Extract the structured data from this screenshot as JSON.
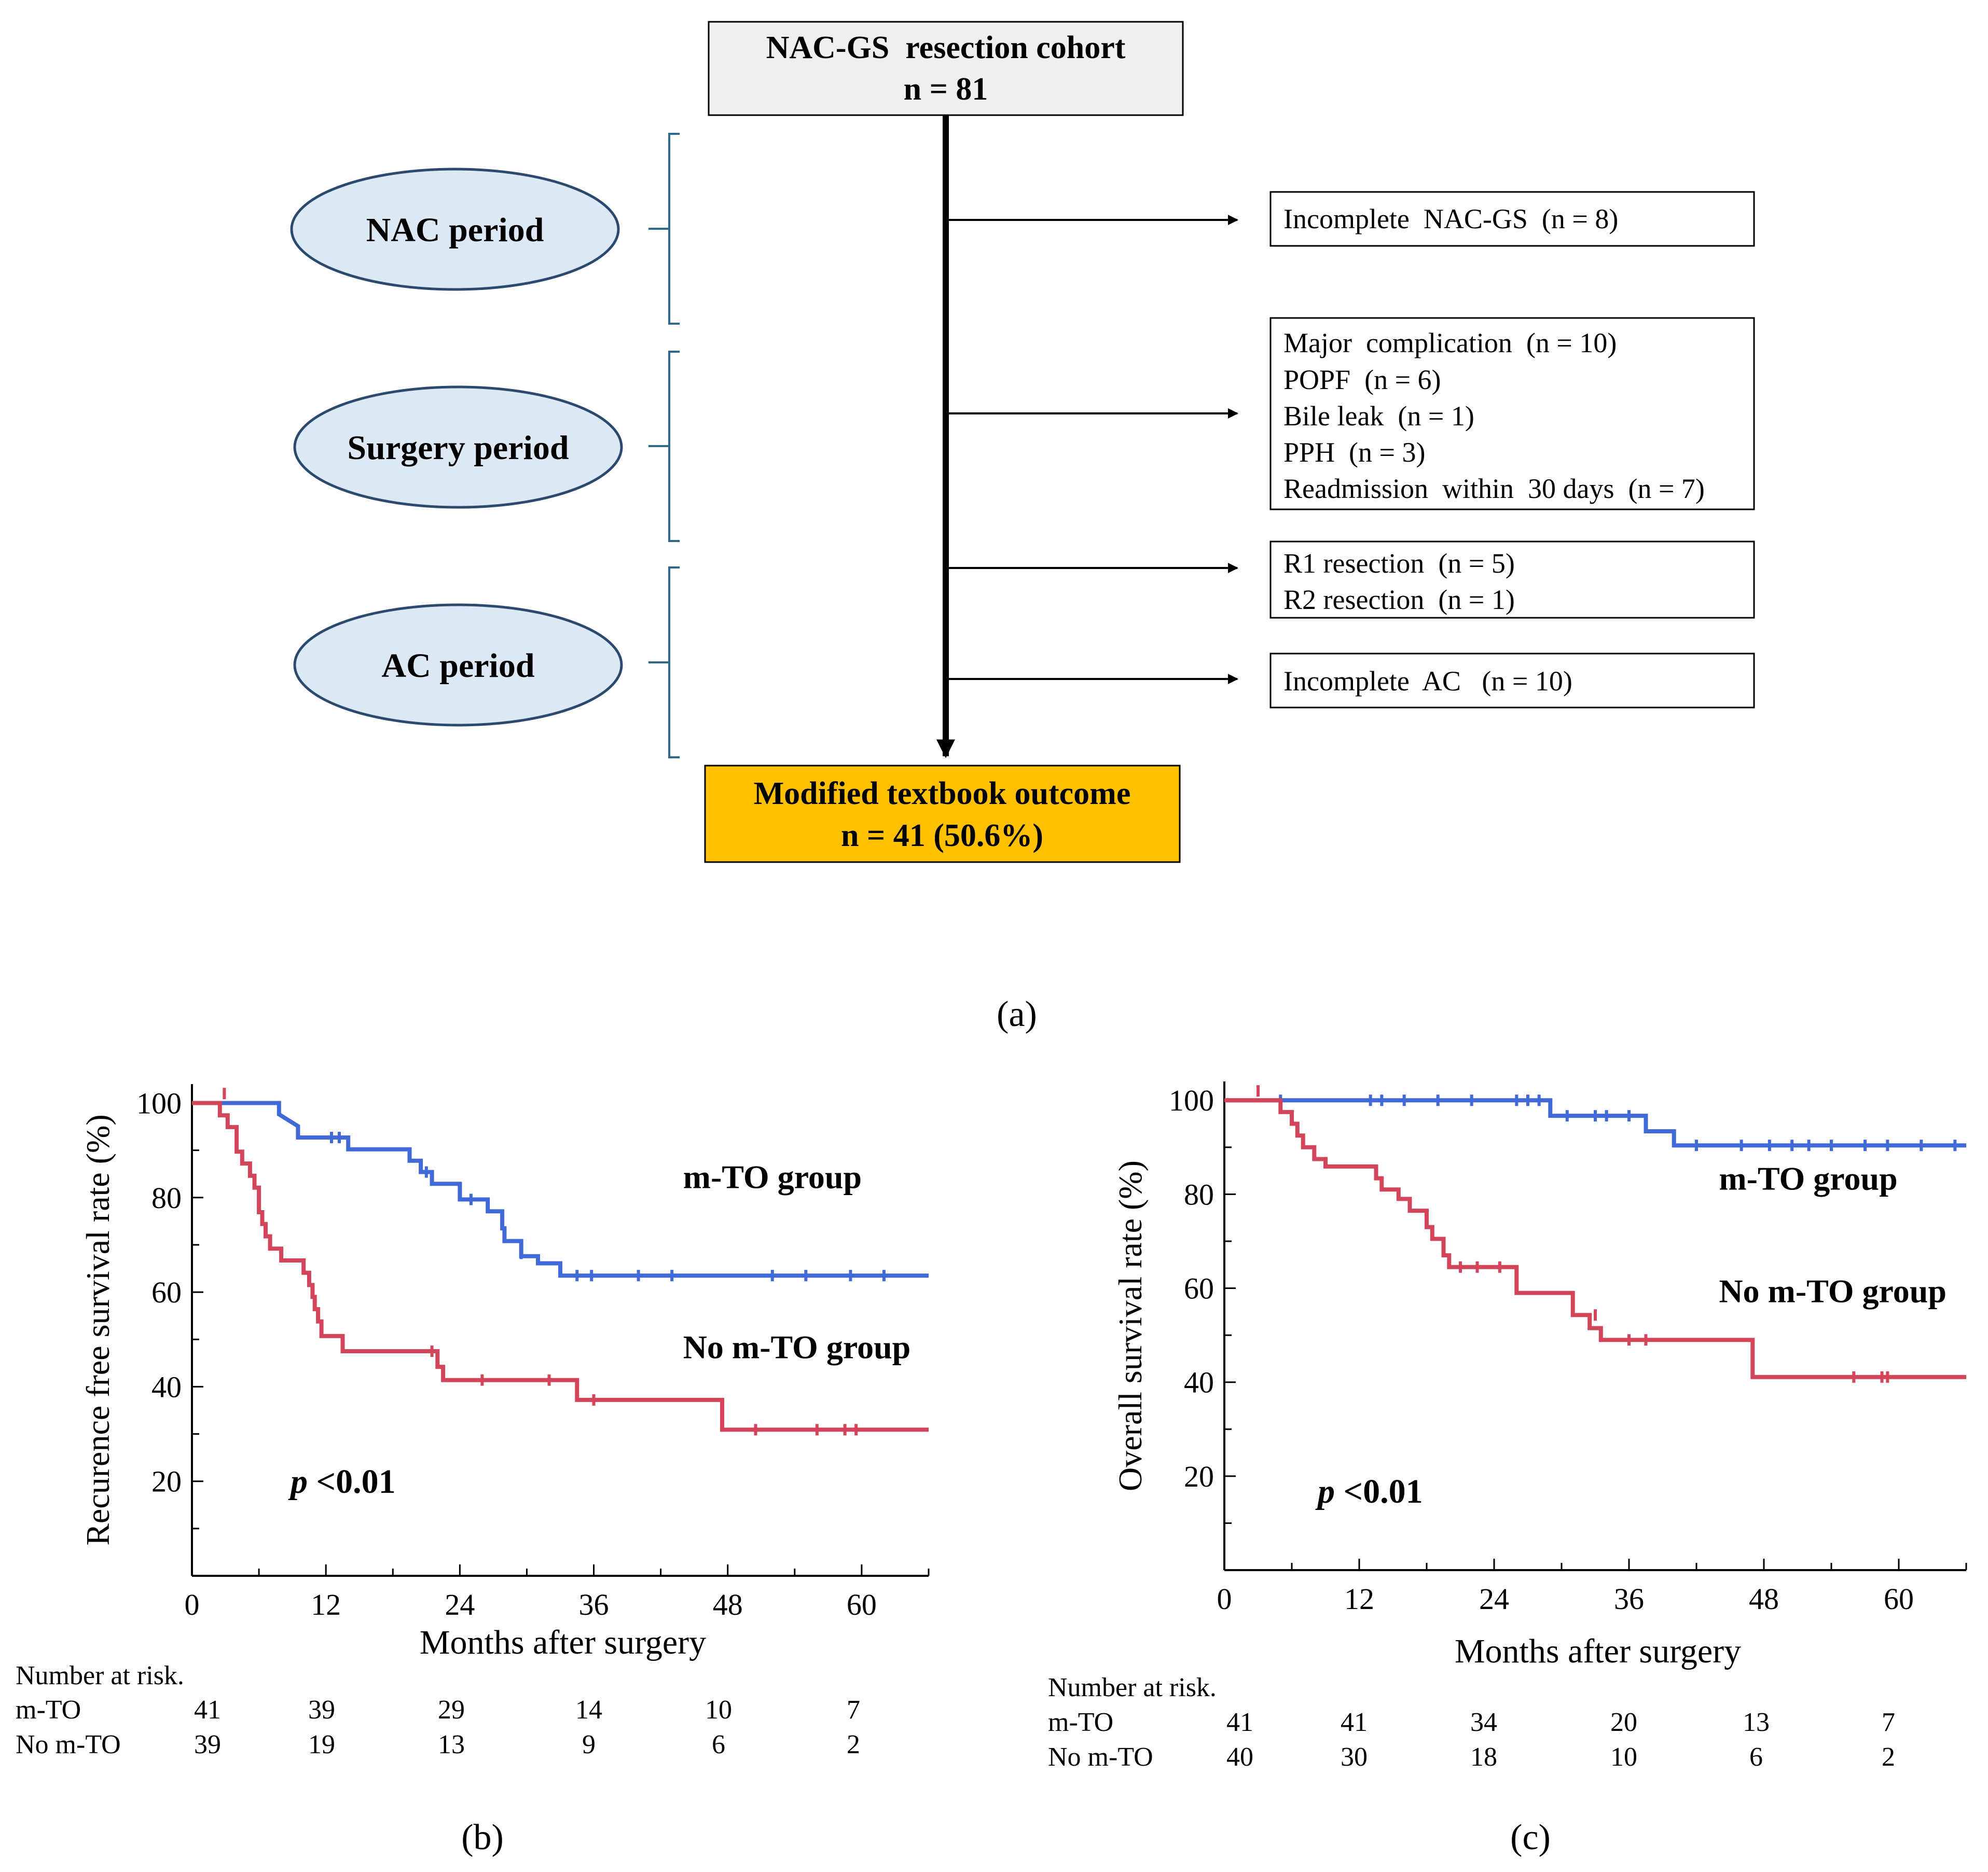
{
  "flowchart": {
    "cohort_title": "NAC-GS  resection cohort",
    "cohort_n": "n = 81",
    "periods": [
      "NAC period",
      "Surgery period",
      "AC period"
    ],
    "exclusions": [
      [
        "Incomplete  NAC-GS  (n = 8)"
      ],
      [
        "Major  complication  (n = 10)",
        "POPF  (n = 6)",
        "Bile leak  (n = 1)",
        "PPH  (n = 3)",
        "Readmission  within  30 days  (n = 7)"
      ],
      [
        "R1 resection  (n = 5)",
        "R2 resection  (n = 1)"
      ],
      [
        "Incomplete  AC   (n = 10)"
      ]
    ],
    "outcome_title": "Modified textbook outcome",
    "outcome_n": "n = 41 (50.6%)",
    "panel_label": "(a)"
  },
  "colors": {
    "blue": "#4169d8",
    "red": "#d2455a",
    "ellipse_fill": "#dce9f5",
    "ellipse_stroke": "#2c4a6e",
    "bracket": "#2e6a8e",
    "cohort_fill": "#efefef",
    "outcome_fill": "#ffc000"
  },
  "chart_data": [
    {
      "type": "line",
      "panel_label": "(b)",
      "ylabel": "Recurence free survival rate (%)",
      "xlabel": "Months after surgery",
      "xlim": [
        0,
        66
      ],
      "ylim": [
        0,
        104
      ],
      "xticks": [
        0,
        12,
        24,
        36,
        48,
        60
      ],
      "yticks": [
        20,
        40,
        60,
        80,
        100
      ],
      "p_prefix": "p",
      "p_value": " <0.01",
      "series": [
        {
          "name": "m-TO group",
          "color": "#4169d8",
          "label_at": [
            44,
            82
          ],
          "points": [
            [
              0,
              100
            ],
            [
              7.8,
              100
            ],
            [
              7.8,
              97.6
            ],
            [
              9.5,
              95.1
            ],
            [
              9.5,
              92.7
            ],
            [
              14,
              92.7
            ],
            [
              14,
              90.2
            ],
            [
              19.5,
              90.2
            ],
            [
              19.5,
              87.8
            ],
            [
              20.5,
              87.8
            ],
            [
              20.5,
              85.4
            ],
            [
              21.5,
              85.4
            ],
            [
              21.5,
              82.9
            ],
            [
              24,
              82.9
            ],
            [
              24,
              79.6
            ],
            [
              26.5,
              79.6
            ],
            [
              26.5,
              77.1
            ],
            [
              27.8,
              77.1
            ],
            [
              27.8,
              73.5
            ],
            [
              28,
              73.5
            ],
            [
              28,
              70.8
            ],
            [
              29.5,
              70.8
            ],
            [
              29.5,
              67.6
            ],
            [
              31,
              67.6
            ],
            [
              31,
              66.1
            ],
            [
              33,
              66.1
            ],
            [
              33,
              63.5
            ],
            [
              66,
              63.5
            ]
          ],
          "censors": [
            [
              12.5,
              92.7
            ],
            [
              13.2,
              92.7
            ],
            [
              21,
              85.4
            ],
            [
              25,
              79.6
            ],
            [
              29.5,
              68.2
            ],
            [
              34.5,
              63.5
            ],
            [
              35.8,
              63.5
            ],
            [
              40,
              63.5
            ],
            [
              43,
              63.5
            ],
            [
              52,
              63.5
            ],
            [
              55,
              63.5
            ],
            [
              59,
              63.5
            ],
            [
              62,
              63.5
            ]
          ]
        },
        {
          "name": "No m-TO group",
          "color": "#d2455a",
          "label_at": [
            44,
            46
          ],
          "points": [
            [
              0,
              100
            ],
            [
              2.5,
              100
            ],
            [
              2.5,
              97.4
            ],
            [
              3.2,
              97.4
            ],
            [
              3.2,
              94.9
            ],
            [
              4,
              94.9
            ],
            [
              4,
              89.7
            ],
            [
              4.5,
              89.7
            ],
            [
              4.5,
              87.2
            ],
            [
              5.2,
              87.2
            ],
            [
              5.2,
              84.6
            ],
            [
              5.6,
              84.6
            ],
            [
              5.6,
              82.1
            ],
            [
              6,
              82.1
            ],
            [
              6,
              76.9
            ],
            [
              6.3,
              76.9
            ],
            [
              6.3,
              74.4
            ],
            [
              6.6,
              74.4
            ],
            [
              6.6,
              71.8
            ],
            [
              7,
              71.8
            ],
            [
              7,
              69.2
            ],
            [
              8,
              69.2
            ],
            [
              8,
              66.7
            ],
            [
              10,
              66.7
            ],
            [
              10,
              64.1
            ],
            [
              10.5,
              64.1
            ],
            [
              10.5,
              61.5
            ],
            [
              10.8,
              61.5
            ],
            [
              10.8,
              59
            ],
            [
              11,
              59
            ],
            [
              11,
              56.4
            ],
            [
              11.3,
              56.4
            ],
            [
              11.3,
              53.8
            ],
            [
              11.6,
              53.8
            ],
            [
              11.6,
              50.7
            ],
            [
              13.5,
              50.7
            ],
            [
              13.5,
              47.5
            ],
            [
              22,
              47.5
            ],
            [
              22,
              44.2
            ],
            [
              22.5,
              44.2
            ],
            [
              22.5,
              41.4
            ],
            [
              34.5,
              41.4
            ],
            [
              34.5,
              37.2
            ],
            [
              47.5,
              37.2
            ],
            [
              47.5,
              30.9
            ],
            [
              66,
              30.9
            ]
          ],
          "censors": [
            [
              2.9,
              102
            ],
            [
              21.5,
              47.5
            ],
            [
              26,
              41.4
            ],
            [
              32,
              41.4
            ],
            [
              36,
              37.2
            ],
            [
              50.5,
              30.9
            ],
            [
              56,
              30.9
            ],
            [
              58.5,
              30.9
            ],
            [
              59.5,
              30.9
            ]
          ]
        }
      ],
      "risk_table": {
        "title": "Number at risk.",
        "rows": [
          {
            "label": "m-TO",
            "values": [
              "41",
              "39",
              "29",
              "14",
              "10",
              "7"
            ]
          },
          {
            "label": "No m-TO",
            "values": [
              "39",
              "19",
              "13",
              "9",
              "6",
              "2"
            ]
          }
        ]
      }
    },
    {
      "type": "line",
      "panel_label": "(c)",
      "ylabel": "Overall survival rate (%)",
      "xlabel": "Months after surgery",
      "xlim": [
        0,
        66
      ],
      "ylim": [
        0,
        104
      ],
      "xticks": [
        0,
        12,
        24,
        36,
        48,
        60
      ],
      "yticks": [
        20,
        40,
        60,
        80,
        100
      ],
      "p_prefix": "p",
      "p_value": " <0.01",
      "series": [
        {
          "name": "m-TO group",
          "color": "#4169d8",
          "label_at": [
            44,
            81
          ],
          "points": [
            [
              0,
              100
            ],
            [
              29,
              100
            ],
            [
              29,
              96.7
            ],
            [
              37.5,
              96.7
            ],
            [
              37.5,
              93.4
            ],
            [
              40,
              93.4
            ],
            [
              40,
              90.4
            ],
            [
              66,
              90.4
            ]
          ],
          "censors": [
            [
              5,
              100
            ],
            [
              13,
              100
            ],
            [
              14,
              100
            ],
            [
              16,
              100
            ],
            [
              19,
              100
            ],
            [
              22,
              100
            ],
            [
              26,
              100
            ],
            [
              27,
              100
            ],
            [
              28,
              100
            ],
            [
              30.5,
              96.7
            ],
            [
              33,
              96.7
            ],
            [
              34,
              96.7
            ],
            [
              36,
              96.7
            ],
            [
              42,
              90.4
            ],
            [
              46,
              90.4
            ],
            [
              48.5,
              90.4
            ],
            [
              50.5,
              90.4
            ],
            [
              52,
              90.4
            ],
            [
              54,
              90.4
            ],
            [
              57,
              90.4
            ],
            [
              59,
              90.4
            ],
            [
              62,
              90.4
            ],
            [
              65,
              90.4
            ]
          ]
        },
        {
          "name": "No m-TO group",
          "color": "#d2455a",
          "label_at": [
            44,
            57
          ],
          "points": [
            [
              0,
              100
            ],
            [
              5,
              100
            ],
            [
              5,
              97.5
            ],
            [
              6,
              97.5
            ],
            [
              6,
              95
            ],
            [
              6.5,
              95
            ],
            [
              6.5,
              92.5
            ],
            [
              7,
              92.5
            ],
            [
              7,
              90
            ],
            [
              8,
              90
            ],
            [
              8,
              87.5
            ],
            [
              9,
              87.5
            ],
            [
              9,
              85.9
            ],
            [
              13.5,
              85.9
            ],
            [
              13.5,
              83.4
            ],
            [
              14,
              83.4
            ],
            [
              14,
              81
            ],
            [
              15.5,
              81
            ],
            [
              15.5,
              79
            ],
            [
              16.5,
              79
            ],
            [
              16.5,
              76.5
            ],
            [
              18,
              76.5
            ],
            [
              18,
              73
            ],
            [
              18.5,
              73
            ],
            [
              18.5,
              70.5
            ],
            [
              19.5,
              70.5
            ],
            [
              19.5,
              67
            ],
            [
              20,
              67
            ],
            [
              20,
              64.5
            ],
            [
              26,
              64.5
            ],
            [
              26,
              59
            ],
            [
              31,
              59
            ],
            [
              31,
              54.3
            ],
            [
              32.5,
              54.3
            ],
            [
              32.5,
              51.5
            ],
            [
              33.5,
              51.5
            ],
            [
              33.5,
              49
            ],
            [
              47,
              49
            ],
            [
              47,
              41.1
            ],
            [
              66,
              41.1
            ]
          ],
          "censors": [
            [
              3,
              102
            ],
            [
              21,
              64.5
            ],
            [
              22.5,
              64.5
            ],
            [
              24.5,
              64.5
            ],
            [
              33,
              54.3
            ],
            [
              36,
              49
            ],
            [
              37.5,
              49
            ],
            [
              56,
              41.1
            ],
            [
              58.5,
              41.1
            ],
            [
              59,
              41.1
            ]
          ]
        }
      ],
      "risk_table": {
        "title": "Number at risk.",
        "rows": [
          {
            "label": "m-TO",
            "values": [
              "41",
              "41",
              "34",
              "20",
              "13",
              "7"
            ]
          },
          {
            "label": "No m-TO",
            "values": [
              "40",
              "30",
              "18",
              "10",
              "6",
              "2"
            ]
          }
        ]
      }
    }
  ]
}
